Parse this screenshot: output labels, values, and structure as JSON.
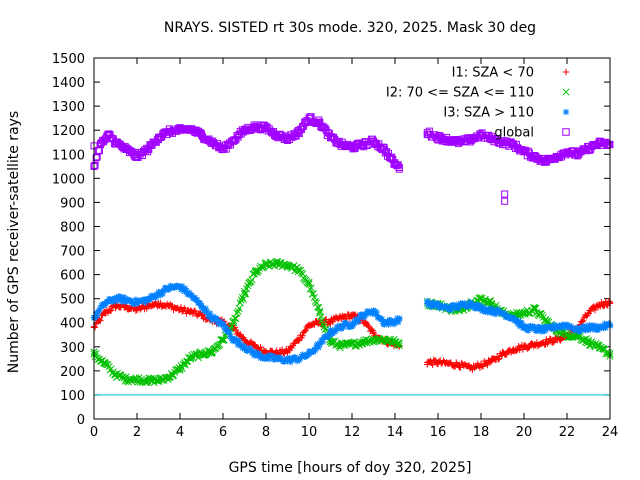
{
  "chart_data": {
    "type": "scatter",
    "title": "NRAYS. SISTED rt 30s mode. 320, 2025. Mask 30 deg",
    "xlabel": "GPS time [hours of doy 320, 2025]",
    "ylabel": "Number of GPS receiver-satellite rays",
    "xlim": [
      0,
      24
    ],
    "ylim": [
      0,
      1500
    ],
    "xticks": [
      "0",
      "2",
      "4",
      "6",
      "8",
      "10",
      "12",
      "14",
      "16",
      "18",
      "20",
      "22",
      "24"
    ],
    "yticks": [
      "0",
      "100",
      "200",
      "300",
      "400",
      "500",
      "600",
      "700",
      "800",
      "900",
      "1000",
      "1100",
      "1200",
      "1300",
      "1400",
      "1500"
    ],
    "legend_position": "top-right",
    "reference_line": {
      "y": 100,
      "color": "#00c0c0"
    },
    "series": [
      {
        "name": "I1: SZA < 70",
        "marker": "+",
        "color": "#ff0000",
        "segments": [
          [
            [
              0,
              380
            ],
            [
              0.5,
              440
            ],
            [
              1,
              470
            ],
            [
              1.5,
              465
            ],
            [
              2,
              455
            ],
            [
              2.5,
              470
            ],
            [
              3,
              480
            ],
            [
              3.5,
              470
            ],
            [
              4,
              455
            ],
            [
              4.5,
              445
            ],
            [
              5,
              430
            ],
            [
              5.5,
              410
            ],
            [
              6,
              400
            ],
            [
              6.5,
              375
            ],
            [
              7,
              330
            ],
            [
              7.5,
              300
            ],
            [
              8,
              280
            ],
            [
              8.5,
              275
            ],
            [
              9,
              280
            ],
            [
              9.5,
              330
            ],
            [
              10,
              390
            ],
            [
              10.5,
              400
            ],
            [
              11,
              405
            ],
            [
              11.5,
              420
            ],
            [
              12,
              430
            ],
            [
              12.5,
              410
            ],
            [
              13,
              355
            ],
            [
              13.5,
              325
            ],
            [
              14,
              310
            ],
            [
              14.2,
              305
            ]
          ],
          [
            [
              15.5,
              235
            ],
            [
              16,
              235
            ],
            [
              16.5,
              230
            ],
            [
              17,
              225
            ],
            [
              17.5,
              210
            ],
            [
              18,
              225
            ],
            [
              18.5,
              240
            ],
            [
              19,
              270
            ],
            [
              19.5,
              290
            ],
            [
              20,
              300
            ],
            [
              20.5,
              310
            ],
            [
              21,
              320
            ],
            [
              21.5,
              330
            ],
            [
              22,
              345
            ],
            [
              22.5,
              380
            ],
            [
              23,
              440
            ],
            [
              23.5,
              475
            ],
            [
              24,
              485
            ]
          ]
        ]
      },
      {
        "name": "I2: 70 <= SZA <= 110",
        "marker": "x",
        "color": "#00c000",
        "segments": [
          [
            [
              0,
              270
            ],
            [
              0.5,
              230
            ],
            [
              1,
              185
            ],
            [
              1.5,
              165
            ],
            [
              2,
              165
            ],
            [
              2.5,
              160
            ],
            [
              3,
              160
            ],
            [
              3.5,
              175
            ],
            [
              4,
              210
            ],
            [
              4.5,
              255
            ],
            [
              5,
              270
            ],
            [
              5.5,
              280
            ],
            [
              6,
              330
            ],
            [
              6.5,
              400
            ],
            [
              7,
              520
            ],
            [
              7.5,
              610
            ],
            [
              8,
              640
            ],
            [
              8.5,
              645
            ],
            [
              9,
              640
            ],
            [
              9.5,
              620
            ],
            [
              10,
              560
            ],
            [
              10.5,
              440
            ],
            [
              11,
              320
            ],
            [
              11.5,
              305
            ],
            [
              12,
              310
            ],
            [
              12.5,
              320
            ],
            [
              13,
              330
            ],
            [
              13.5,
              330
            ],
            [
              14,
              320
            ],
            [
              14.2,
              315
            ]
          ],
          [
            [
              15.5,
              480
            ],
            [
              16,
              475
            ],
            [
              16.5,
              460
            ],
            [
              17,
              450
            ],
            [
              17.5,
              480
            ],
            [
              18,
              500
            ],
            [
              18.5,
              480
            ],
            [
              19,
              440
            ],
            [
              19.5,
              430
            ],
            [
              20,
              440
            ],
            [
              20.5,
              455
            ],
            [
              21,
              410
            ],
            [
              21.5,
              370
            ],
            [
              22,
              350
            ],
            [
              22.5,
              345
            ],
            [
              23,
              320
            ],
            [
              23.5,
              295
            ],
            [
              24,
              270
            ]
          ]
        ]
      },
      {
        "name": "I3: SZA > 110",
        "marker": "*",
        "color": "#0080ff",
        "segments": [
          [
            [
              0,
              420
            ],
            [
              0.5,
              480
            ],
            [
              1,
              500
            ],
            [
              1.5,
              495
            ],
            [
              2,
              485
            ],
            [
              2.5,
              495
            ],
            [
              3,
              520
            ],
            [
              3.5,
              545
            ],
            [
              4,
              550
            ],
            [
              4.5,
              515
            ],
            [
              5,
              470
            ],
            [
              5.5,
              420
            ],
            [
              6,
              390
            ],
            [
              6.5,
              330
            ],
            [
              7,
              300
            ],
            [
              7.5,
              270
            ],
            [
              8,
              255
            ],
            [
              8.5,
              250
            ],
            [
              9,
              245
            ],
            [
              9.5,
              250
            ],
            [
              10,
              270
            ],
            [
              10.5,
              310
            ],
            [
              11,
              360
            ],
            [
              11.5,
              385
            ],
            [
              12,
              395
            ],
            [
              12.5,
              430
            ],
            [
              13,
              450
            ],
            [
              13.5,
              400
            ],
            [
              14,
              405
            ],
            [
              14.2,
              415
            ]
          ],
          [
            [
              15.5,
              480
            ],
            [
              16,
              470
            ],
            [
              16.5,
              460
            ],
            [
              17,
              470
            ],
            [
              17.5,
              480
            ],
            [
              18,
              460
            ],
            [
              18.5,
              450
            ],
            [
              19,
              440
            ],
            [
              19.5,
              420
            ],
            [
              20,
              380
            ],
            [
              20.5,
              375
            ],
            [
              21,
              370
            ],
            [
              21.5,
              385
            ],
            [
              22,
              390
            ],
            [
              22.5,
              370
            ],
            [
              23,
              380
            ],
            [
              23.5,
              380
            ],
            [
              24,
              390
            ]
          ]
        ]
      },
      {
        "name": "global",
        "marker": "square",
        "color": "#a000ff",
        "segments": [
          [
            [
              0,
              1050
            ],
            [
              0.3,
              1140
            ],
            [
              0.7,
              1180
            ],
            [
              1,
              1150
            ],
            [
              1.5,
              1120
            ],
            [
              2,
              1090
            ],
            [
              2.5,
              1120
            ],
            [
              3,
              1170
            ],
            [
              3.5,
              1195
            ],
            [
              4,
              1200
            ],
            [
              4.5,
              1205
            ],
            [
              5,
              1180
            ],
            [
              5.5,
              1150
            ],
            [
              6,
              1120
            ],
            [
              6.5,
              1160
            ],
            [
              7,
              1200
            ],
            [
              7.5,
              1215
            ],
            [
              8,
              1210
            ],
            [
              8.5,
              1180
            ],
            [
              9,
              1165
            ],
            [
              9.5,
              1190
            ],
            [
              10,
              1250
            ],
            [
              10.5,
              1230
            ],
            [
              11,
              1170
            ],
            [
              11.5,
              1140
            ],
            [
              12,
              1130
            ],
            [
              12.5,
              1140
            ],
            [
              13,
              1155
            ],
            [
              13.5,
              1120
            ],
            [
              14,
              1060
            ],
            [
              14.2,
              1045
            ]
          ],
          [
            [
              15.5,
              1190
            ],
            [
              16,
              1170
            ],
            [
              16.5,
              1160
            ],
            [
              17,
              1150
            ],
            [
              17.5,
              1160
            ],
            [
              18,
              1180
            ],
            [
              18.5,
              1165
            ],
            [
              19,
              1150
            ],
            [
              19.5,
              1140
            ],
            [
              20,
              1110
            ],
            [
              20.5,
              1090
            ],
            [
              21,
              1070
            ],
            [
              21.5,
              1090
            ],
            [
              22,
              1110
            ],
            [
              22.5,
              1100
            ],
            [
              23,
              1125
            ],
            [
              23.5,
              1145
            ],
            [
              24,
              1140
            ]
          ]
        ],
        "outliers": [
          [
            0,
            1135
          ],
          [
            19.1,
            935
          ],
          [
            19.1,
            905
          ]
        ]
      }
    ]
  }
}
